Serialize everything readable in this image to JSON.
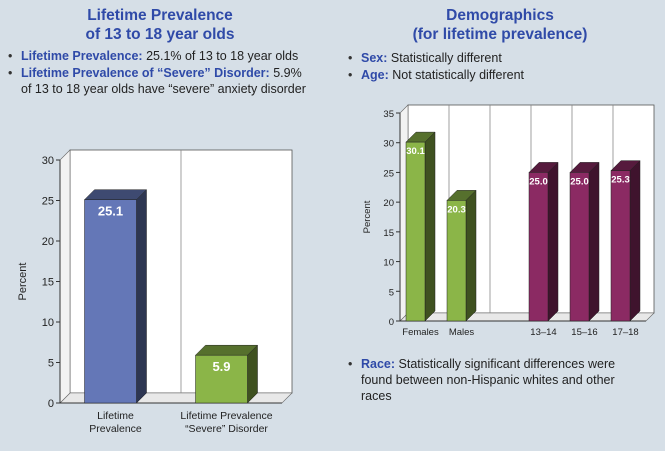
{
  "left": {
    "title_line1": "Lifetime Prevalence",
    "title_line2": "of 13 to 18 year olds",
    "bullets": [
      {
        "lead": "Lifetime Prevalence:",
        "text": " 25.1% of 13 to 18 year olds"
      },
      {
        "lead": "Lifetime Prevalence of “Severe” Disorder:",
        "text": " 5.9% of 13 to 18 year olds have “severe” anxiety disorder"
      }
    ]
  },
  "right": {
    "title_line1": "Demographics",
    "title_line2": "(for lifetime prevalence)",
    "bullets": [
      {
        "lead": "Sex:",
        "text": " Statistically different"
      },
      {
        "lead": "Age:",
        "text": " Not statistically different"
      }
    ],
    "race_bullet": {
      "lead": "Race:",
      "text": " Statistically significant differences were found between non-Hispanic whites and other races"
    }
  },
  "colors": {
    "title_blue": "#2f4aa8",
    "bar_blue": "#6477b7",
    "bar_green": "#8bb548",
    "bar_purple": "#8b2a63"
  },
  "chart_data": [
    {
      "type": "bar",
      "title": "",
      "ylabel": "Percent",
      "xlabel": "",
      "ylim": [
        0,
        30
      ],
      "yticks": [
        0,
        5,
        10,
        15,
        20,
        25,
        30
      ],
      "grid": false,
      "categories": [
        [
          "Lifetime",
          "Prevalence"
        ],
        [
          "Lifetime Prevalence",
          "“Severe” Disorder"
        ]
      ],
      "values": [
        25.1,
        5.9
      ],
      "value_labels": [
        "25.1",
        "5.9"
      ],
      "bar_colors": [
        "#6477b7",
        "#8bb548"
      ]
    },
    {
      "type": "bar",
      "title": "",
      "ylabel": "Percent",
      "xlabel": "",
      "ylim": [
        0,
        35
      ],
      "yticks": [
        0,
        5,
        10,
        15,
        20,
        25,
        30,
        35
      ],
      "grid": false,
      "categories": [
        "Females",
        "Males",
        "",
        "13–14",
        "15–16",
        "17–18"
      ],
      "values": [
        30.1,
        20.3,
        null,
        25.0,
        25.0,
        25.3
      ],
      "value_labels": [
        "30.1",
        "20.3",
        "",
        "25.0",
        "25.0",
        "25.3"
      ],
      "bar_colors": [
        "#8bb548",
        "#8bb548",
        null,
        "#8b2a63",
        "#8b2a63",
        "#8b2a63"
      ]
    }
  ]
}
